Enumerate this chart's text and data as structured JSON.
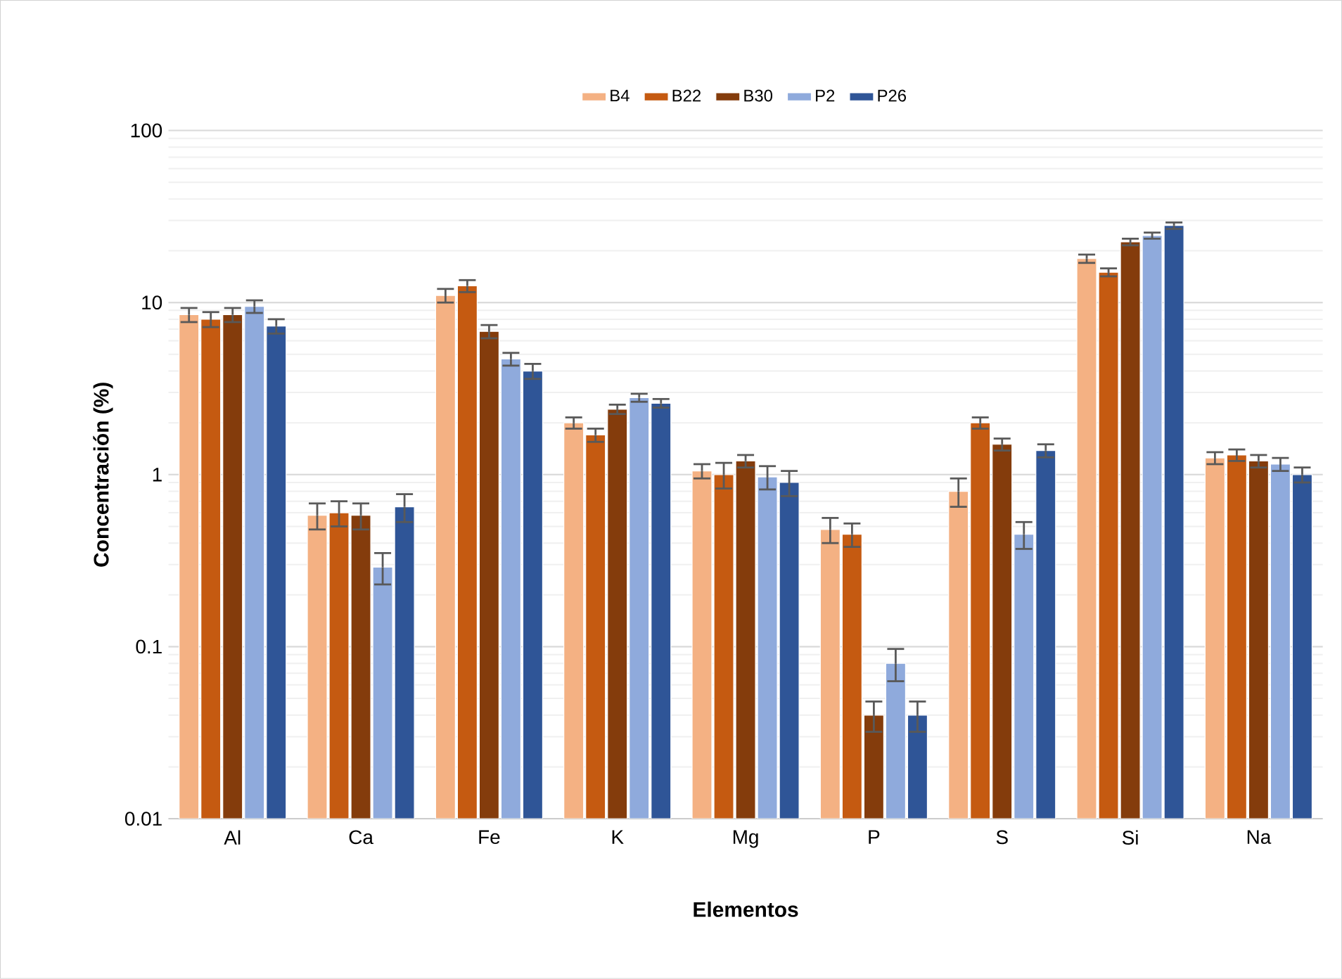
{
  "chart_data": {
    "type": "bar",
    "xlabel": "Elementos",
    "ylabel": "Concentración (%)",
    "categories": [
      "Al",
      "Ca",
      "Fe",
      "K",
      "Mg",
      "P",
      "S",
      "Si",
      "Na"
    ],
    "series": [
      {
        "name": "B4",
        "color": "#f4b183",
        "values": [
          8.5,
          0.58,
          11,
          2.0,
          1.05,
          0.48,
          0.8,
          18,
          1.25
        ],
        "errors": [
          0.8,
          0.1,
          1,
          0.15,
          0.1,
          0.08,
          0.15,
          1,
          0.1
        ]
      },
      {
        "name": "B22",
        "color": "#c55a11",
        "values": [
          8,
          0.6,
          12.5,
          1.7,
          1.0,
          0.45,
          2.0,
          15,
          1.3
        ],
        "errors": [
          0.8,
          0.1,
          1,
          0.15,
          0.17,
          0.07,
          0.15,
          0.8,
          0.1
        ]
      },
      {
        "name": "B30",
        "color": "#843c0c",
        "values": [
          8.5,
          0.58,
          6.8,
          2.4,
          1.2,
          0.04,
          1.5,
          22.5,
          1.2
        ],
        "errors": [
          0.8,
          0.1,
          0.6,
          0.15,
          0.1,
          0.008,
          0.12,
          1,
          0.1
        ]
      },
      {
        "name": "P2",
        "color": "#8faadc",
        "values": [
          9.5,
          0.29,
          4.7,
          2.8,
          0.97,
          0.08,
          0.45,
          24.5,
          1.15
        ],
        "errors": [
          0.8,
          0.06,
          0.4,
          0.15,
          0.15,
          0.017,
          0.08,
          1,
          0.1
        ]
      },
      {
        "name": "P26",
        "color": "#2f5597",
        "values": [
          7.3,
          0.65,
          4.0,
          2.6,
          0.9,
          0.04,
          1.38,
          28,
          1.0
        ],
        "errors": [
          0.7,
          0.12,
          0.4,
          0.15,
          0.15,
          0.008,
          0.12,
          1.2,
          0.1
        ]
      }
    ],
    "log": true,
    "ylim": [
      0.01,
      100
    ],
    "yticks": [
      0.01,
      0.1,
      1,
      10,
      100
    ],
    "grid": true,
    "legend": "top"
  }
}
